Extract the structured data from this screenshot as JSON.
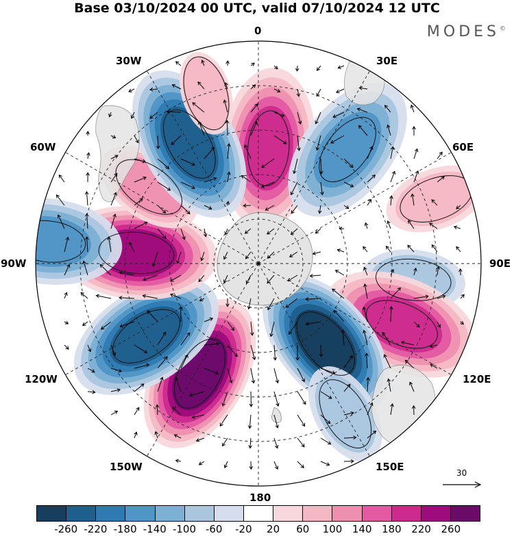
{
  "title": "Base 03/10/2024 00 UTC, valid 07/10/2024 12 UTC",
  "brand": "MODES",
  "brand_mark": "©",
  "longitude_labels": [
    "0",
    "30E",
    "60E",
    "90E",
    "120E",
    "150E",
    "180",
    "150W",
    "120W",
    "90W",
    "60W",
    "30W"
  ],
  "reference_vector": {
    "value": "30"
  },
  "colorbar": {
    "colors": [
      "#173e5e",
      "#1f5f8d",
      "#2f7ab2",
      "#4f95c6",
      "#7cb0d4",
      "#aac6df",
      "#d6deed",
      "#ffffff",
      "#f8d8dc",
      "#f4b8c4",
      "#ef8fb0",
      "#e35aa3",
      "#cc2a8e",
      "#9e0b7c",
      "#6a0b6a"
    ],
    "tick_labels": [
      "-260",
      "-220",
      "-180",
      "-140",
      "-100",
      "-60",
      "-20",
      "20",
      "60",
      "100",
      "140",
      "180",
      "220",
      "260"
    ]
  },
  "anomalies": [
    {
      "lon": 5,
      "colat": 52,
      "value": 170
    },
    {
      "lon": 38,
      "colat": 65,
      "value": -140
    },
    {
      "lon": 70,
      "colat": 85,
      "value": 60
    },
    {
      "lon": 96,
      "colat": 70,
      "value": -60
    },
    {
      "lon": 113,
      "colat": 70,
      "value": 150
    },
    {
      "lon": 140,
      "colat": 47,
      "value": -230
    },
    {
      "lon": 150,
      "colat": 78,
      "value": -60
    },
    {
      "lon": 208,
      "colat": 56,
      "value": 230
    },
    {
      "lon": 237,
      "colat": 60,
      "value": -220
    },
    {
      "lon": 275,
      "colat": 55,
      "value": 190
    },
    {
      "lon": 276,
      "colat": 95,
      "value": -130
    },
    {
      "lon": 305,
      "colat": 60,
      "value": 70
    },
    {
      "lon": 330,
      "colat": 62,
      "value": -190
    },
    {
      "lon": 343,
      "colat": 80,
      "value": 30
    }
  ]
}
